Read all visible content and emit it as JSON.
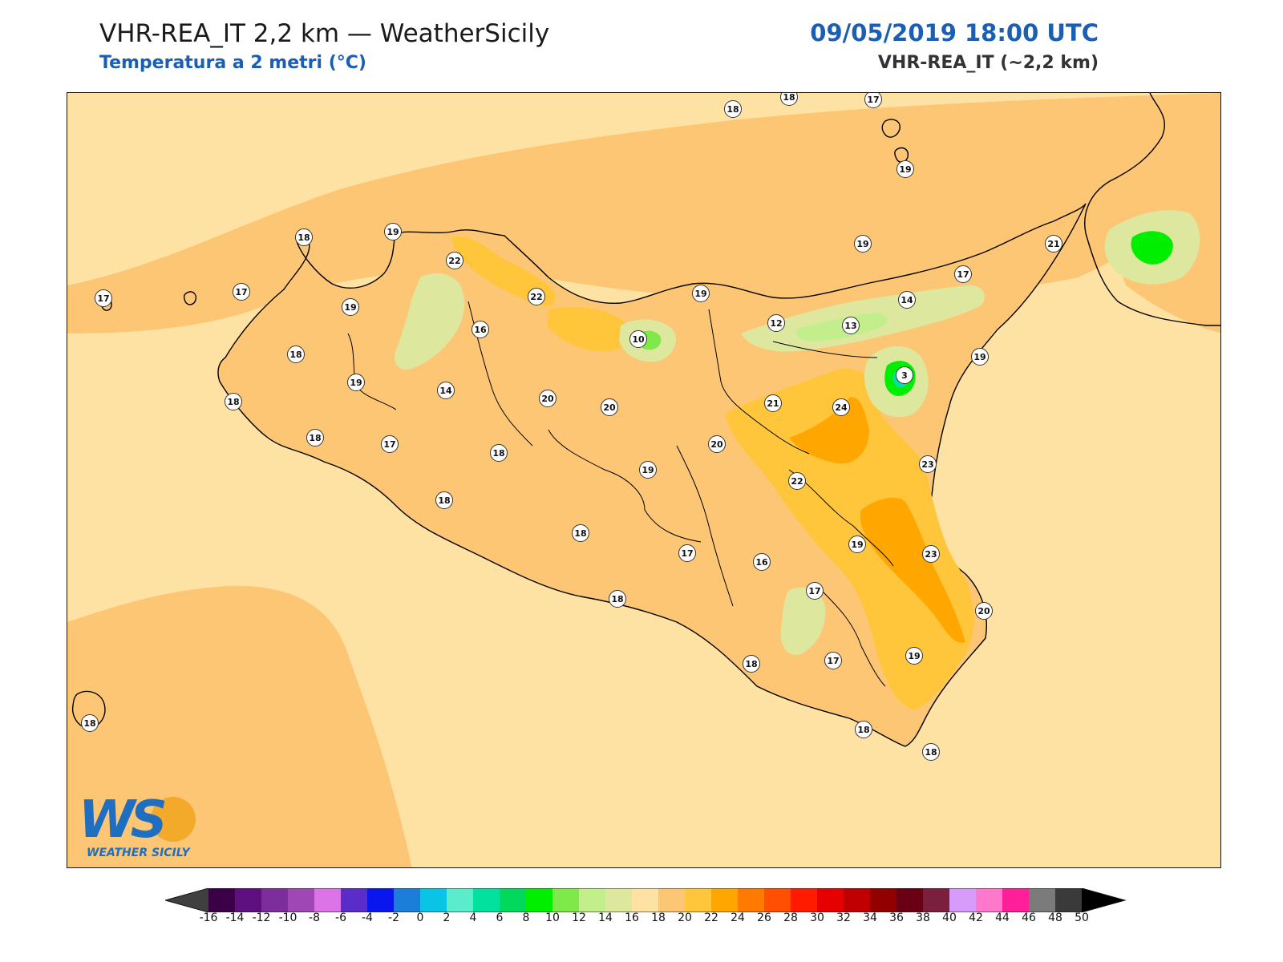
{
  "header": {
    "title": "VHR-REA_IT 2,2 km — WeatherSicily",
    "subtitle": "Temperatura a 2 metri (°C)",
    "datetime": "09/05/2019 18:00 UTC",
    "model": "VHR-REA_IT (~2,2 km)"
  },
  "logo": {
    "letters": "WS",
    "text": "WEATHER SICILY"
  },
  "stations": [
    {
      "value": "18"
    },
    {
      "value": "18"
    },
    {
      "value": "17"
    },
    {
      "value": "19"
    },
    {
      "value": "18"
    },
    {
      "value": "19"
    },
    {
      "value": "21"
    },
    {
      "value": "22"
    },
    {
      "value": "17"
    },
    {
      "value": "17"
    },
    {
      "value": "17"
    },
    {
      "value": "19"
    },
    {
      "value": "22"
    },
    {
      "value": "19"
    },
    {
      "value": "14"
    },
    {
      "value": "19"
    },
    {
      "value": "16"
    },
    {
      "value": "10"
    },
    {
      "value": "12"
    },
    {
      "value": "13"
    },
    {
      "value": "18"
    },
    {
      "value": "19"
    },
    {
      "value": "3"
    },
    {
      "value": "19"
    },
    {
      "value": "14"
    },
    {
      "value": "20"
    },
    {
      "value": "20"
    },
    {
      "value": "21"
    },
    {
      "value": "24"
    },
    {
      "value": "18"
    },
    {
      "value": "18"
    },
    {
      "value": "17"
    },
    {
      "value": "18"
    },
    {
      "value": "20"
    },
    {
      "value": "19"
    },
    {
      "value": "23"
    },
    {
      "value": "22"
    },
    {
      "value": "18"
    },
    {
      "value": "18"
    },
    {
      "value": "19"
    },
    {
      "value": "23"
    },
    {
      "value": "17"
    },
    {
      "value": "16"
    },
    {
      "value": "18"
    },
    {
      "value": "17"
    },
    {
      "value": "20"
    },
    {
      "value": "18"
    },
    {
      "value": "17"
    },
    {
      "value": "19"
    },
    {
      "value": "18"
    },
    {
      "value": "18"
    },
    {
      "value": "18"
    }
  ],
  "colorbar": {
    "labels": [
      "-16",
      "-14",
      "-12",
      "-10",
      "-8",
      "-6",
      "-4",
      "-2",
      "0",
      "2",
      "4",
      "6",
      "8",
      "10",
      "12",
      "14",
      "16",
      "18",
      "20",
      "22",
      "24",
      "26",
      "28",
      "30",
      "32",
      "34",
      "36",
      "38",
      "40",
      "42",
      "44",
      "46",
      "48",
      "50"
    ],
    "colors": [
      "#3b0048",
      "#5e0f80",
      "#7e2e9c",
      "#9f48b5",
      "#dc74e8",
      "#5a2cc9",
      "#0a16ee",
      "#1c7ed8",
      "#09c4e4",
      "#5beccc",
      "#02e19d",
      "#02d95c",
      "#00ef00",
      "#7fe94a",
      "#c2ee8c",
      "#dde79e",
      "#fee2a3",
      "#fcc674",
      "#ffc63b",
      "#ffa700",
      "#ff7a00",
      "#ff4f00",
      "#ff1a00",
      "#e60000",
      "#c00000",
      "#930000",
      "#6a0014",
      "#7a1f3e",
      "#d79bfb",
      "#ff78cc",
      "#ff1f98",
      "#7b7b7b",
      "#3a3a3a"
    ],
    "under_color": "#3f3f3f",
    "over_color": "#000000"
  },
  "map_colors": {
    "base": "#fee2a3",
    "t18": "#fcc674",
    "t22": "#ffc63b",
    "t24": "#ffa700",
    "t14": "#dde79e",
    "t12": "#c2ee8c",
    "t10": "#7fe94a",
    "t8": "#00ef00",
    "t4": "#02e19d",
    "coast": "#000000"
  }
}
